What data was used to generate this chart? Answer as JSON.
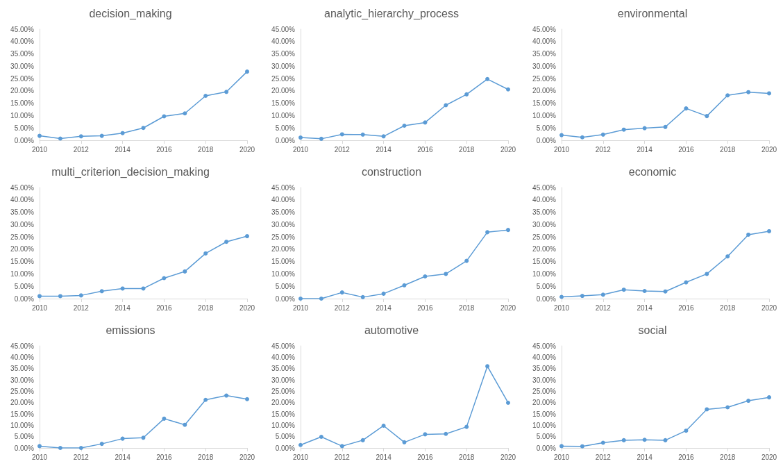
{
  "chart_data": [
    {
      "type": "line",
      "title": "decision_making",
      "x": [
        2010,
        2011,
        2012,
        2013,
        2014,
        2015,
        2016,
        2017,
        2018,
        2019,
        2020
      ],
      "values": [
        1.8,
        0.7,
        1.6,
        1.8,
        2.9,
        5.0,
        9.7,
        10.9,
        18.0,
        19.6,
        27.8
      ],
      "color": "#5b9bd5",
      "marker": "circle",
      "xlim": [
        2010,
        2020
      ],
      "xticks": [
        2010,
        2012,
        2014,
        2016,
        2018,
        2020
      ],
      "ylim": [
        0,
        45
      ],
      "yticks": [
        {
          "value": 0,
          "label": "0.00%"
        },
        {
          "value": 5,
          "label": "5.00%"
        },
        {
          "value": 10,
          "label": "10.00%"
        },
        {
          "value": 15,
          "label": "15.00%"
        },
        {
          "value": 20,
          "label": "20.00%"
        },
        {
          "value": 25,
          "label": "25.00%"
        },
        {
          "value": 30,
          "label": "30.00%"
        },
        {
          "value": 35,
          "label": "35.00%"
        },
        {
          "value": 40,
          "label": "40.00%"
        },
        {
          "value": 45,
          "label": "45.00%"
        }
      ]
    },
    {
      "type": "line",
      "title": "analytic_hierarchy_process",
      "x": [
        2010,
        2011,
        2012,
        2013,
        2014,
        2015,
        2016,
        2017,
        2018,
        2019,
        2020
      ],
      "values": [
        1.1,
        0.6,
        2.4,
        2.3,
        1.6,
        5.9,
        7.2,
        14.2,
        18.6,
        24.8,
        20.6
      ],
      "color": "#5b9bd5",
      "marker": "circle",
      "xlim": [
        2010,
        2020
      ],
      "xticks": [
        2010,
        2012,
        2014,
        2016,
        2018,
        2020
      ],
      "ylim": [
        0,
        45
      ],
      "yticks": [
        {
          "value": 0,
          "label": "0.00%"
        },
        {
          "value": 5,
          "label": "5.00%"
        },
        {
          "value": 10,
          "label": "10.00%"
        },
        {
          "value": 15,
          "label": "15.00%"
        },
        {
          "value": 20,
          "label": "20.00%"
        },
        {
          "value": 25,
          "label": "25.00%"
        },
        {
          "value": 30,
          "label": "30.00%"
        },
        {
          "value": 35,
          "label": "35.00%"
        },
        {
          "value": 40,
          "label": "40.00%"
        },
        {
          "value": 45,
          "label": "45.00%"
        }
      ]
    },
    {
      "type": "line",
      "title": "environmental",
      "x": [
        2010,
        2011,
        2012,
        2013,
        2014,
        2015,
        2016,
        2017,
        2018,
        2019,
        2020
      ],
      "values": [
        2.1,
        1.2,
        2.3,
        4.3,
        4.9,
        5.4,
        12.9,
        9.8,
        18.2,
        19.5,
        19.0
      ],
      "color": "#5b9bd5",
      "marker": "circle",
      "xlim": [
        2010,
        2020
      ],
      "xticks": [
        2010,
        2012,
        2014,
        2016,
        2018,
        2020
      ],
      "ylim": [
        0,
        45
      ],
      "yticks": [
        {
          "value": 0,
          "label": "0.00%"
        },
        {
          "value": 5,
          "label": "5.00%"
        },
        {
          "value": 10,
          "label": "10.00%"
        },
        {
          "value": 15,
          "label": "15.00%"
        },
        {
          "value": 20,
          "label": "20.00%"
        },
        {
          "value": 25,
          "label": "25.00%"
        },
        {
          "value": 30,
          "label": "30.00%"
        },
        {
          "value": 35,
          "label": "35.00%"
        },
        {
          "value": 40,
          "label": "40.00%"
        },
        {
          "value": 45,
          "label": "45.00%"
        }
      ]
    },
    {
      "type": "line",
      "title": "multi_criterion_decision_making",
      "x": [
        2010,
        2011,
        2012,
        2013,
        2014,
        2015,
        2016,
        2017,
        2018,
        2019,
        2020
      ],
      "values": [
        1.0,
        1.0,
        1.3,
        3.0,
        4.1,
        4.1,
        8.3,
        11.0,
        18.3,
        23.0,
        25.3
      ],
      "color": "#5b9bd5",
      "marker": "circle",
      "xlim": [
        2010,
        2020
      ],
      "xticks": [
        2010,
        2012,
        2014,
        2016,
        2018,
        2020
      ],
      "ylim": [
        0,
        45
      ],
      "yticks": [
        {
          "value": 0,
          "label": "0.00%"
        },
        {
          "value": 5,
          "label": "5.00%"
        },
        {
          "value": 10,
          "label": "10.00%"
        },
        {
          "value": 15,
          "label": "15.00%"
        },
        {
          "value": 20,
          "label": "20.00%"
        },
        {
          "value": 25,
          "label": "25.00%"
        },
        {
          "value": 30,
          "label": "30.00%"
        },
        {
          "value": 35,
          "label": "35.00%"
        },
        {
          "value": 40,
          "label": "40.00%"
        },
        {
          "value": 45,
          "label": "45.00%"
        }
      ]
    },
    {
      "type": "line",
      "title": "construction",
      "x": [
        2010,
        2011,
        2012,
        2013,
        2014,
        2015,
        2016,
        2017,
        2018,
        2019,
        2020
      ],
      "values": [
        0,
        0,
        2.5,
        0.6,
        2.0,
        5.4,
        9.0,
        10.0,
        15.3,
        26.9,
        27.8
      ],
      "color": "#5b9bd5",
      "marker": "circle",
      "xlim": [
        2010,
        2020
      ],
      "xticks": [
        2010,
        2012,
        2014,
        2016,
        2018,
        2020
      ],
      "ylim": [
        0,
        45
      ],
      "yticks": [
        {
          "value": 0,
          "label": "0.00%"
        },
        {
          "value": 5,
          "label": "5.00%"
        },
        {
          "value": 10,
          "label": "10.00%"
        },
        {
          "value": 15,
          "label": "15.00%"
        },
        {
          "value": 20,
          "label": "20.00%"
        },
        {
          "value": 25,
          "label": "25.00%"
        },
        {
          "value": 30,
          "label": "30.00%"
        },
        {
          "value": 35,
          "label": "35.00%"
        },
        {
          "value": 40,
          "label": "40.00%"
        },
        {
          "value": 45,
          "label": "45.00%"
        }
      ]
    },
    {
      "type": "line",
      "title": "economic",
      "x": [
        2010,
        2011,
        2012,
        2013,
        2014,
        2015,
        2016,
        2017,
        2018,
        2019,
        2020
      ],
      "values": [
        0.7,
        1.1,
        1.6,
        3.6,
        3.1,
        2.9,
        6.6,
        10.0,
        17.1,
        25.9,
        27.3
      ],
      "color": "#5b9bd5",
      "marker": "circle",
      "xlim": [
        2010,
        2020
      ],
      "xticks": [
        2010,
        2012,
        2014,
        2016,
        2018,
        2020
      ],
      "ylim": [
        0,
        45
      ],
      "yticks": [
        {
          "value": 0,
          "label": "0.00%"
        },
        {
          "value": 5,
          "label": "5.00%"
        },
        {
          "value": 10,
          "label": "10.00%"
        },
        {
          "value": 15,
          "label": "15.00%"
        },
        {
          "value": 20,
          "label": "20.00%"
        },
        {
          "value": 25,
          "label": "25.00%"
        },
        {
          "value": 30,
          "label": "30.00%"
        },
        {
          "value": 35,
          "label": "35.00%"
        },
        {
          "value": 40,
          "label": "40.00%"
        },
        {
          "value": 45,
          "label": "45.00%"
        }
      ]
    },
    {
      "type": "line",
      "title": "emissions",
      "x": [
        2010,
        2011,
        2012,
        2013,
        2014,
        2015,
        2016,
        2017,
        2018,
        2019,
        2020
      ],
      "values": [
        0.8,
        0,
        0,
        1.8,
        4.1,
        4.5,
        12.9,
        10.2,
        21.2,
        23.1,
        21.5
      ],
      "color": "#5b9bd5",
      "marker": "circle",
      "xlim": [
        2010,
        2020
      ],
      "xticks": [
        2010,
        2012,
        2014,
        2016,
        2018,
        2020
      ],
      "ylim": [
        0,
        45
      ],
      "yticks": [
        {
          "value": 0,
          "label": "0.00%"
        },
        {
          "value": 5,
          "label": "5.00%"
        },
        {
          "value": 10,
          "label": "10.00%"
        },
        {
          "value": 15,
          "label": "15.00%"
        },
        {
          "value": 20,
          "label": "20.00%"
        },
        {
          "value": 25,
          "label": "25.00%"
        },
        {
          "value": 30,
          "label": "30.00%"
        },
        {
          "value": 35,
          "label": "35.00%"
        },
        {
          "value": 40,
          "label": "40.00%"
        },
        {
          "value": 45,
          "label": "45.00%"
        }
      ]
    },
    {
      "type": "line",
      "title": "automotive",
      "x": [
        2010,
        2011,
        2012,
        2013,
        2014,
        2015,
        2016,
        2017,
        2018,
        2019,
        2020
      ],
      "values": [
        1.3,
        4.9,
        0.8,
        3.4,
        9.8,
        2.5,
        6.0,
        6.2,
        9.3,
        36.0,
        19.9
      ],
      "color": "#5b9bd5",
      "marker": "circle",
      "xlim": [
        2010,
        2020
      ],
      "xticks": [
        2010,
        2012,
        2014,
        2016,
        2018,
        2020
      ],
      "ylim": [
        0,
        45
      ],
      "yticks": [
        {
          "value": 0,
          "label": "0.00%"
        },
        {
          "value": 5,
          "label": "5.00%"
        },
        {
          "value": 10,
          "label": "10.00%"
        },
        {
          "value": 15,
          "label": "15.00%"
        },
        {
          "value": 20,
          "label": "20.00%"
        },
        {
          "value": 25,
          "label": "25.00%"
        },
        {
          "value": 30,
          "label": "30.00%"
        },
        {
          "value": 35,
          "label": "35.00%"
        },
        {
          "value": 40,
          "label": "40.00%"
        },
        {
          "value": 45,
          "label": "45.00%"
        }
      ]
    },
    {
      "type": "line",
      "title": "social",
      "x": [
        2010,
        2011,
        2012,
        2013,
        2014,
        2015,
        2016,
        2017,
        2018,
        2019,
        2020
      ],
      "values": [
        0.8,
        0.7,
        2.3,
        3.4,
        3.6,
        3.4,
        7.6,
        17.0,
        17.9,
        20.8,
        22.3
      ],
      "color": "#5b9bd5",
      "marker": "circle",
      "xlim": [
        2010,
        2020
      ],
      "xticks": [
        2010,
        2012,
        2014,
        2016,
        2018,
        2020
      ],
      "ylim": [
        0,
        45
      ],
      "yticks": [
        {
          "value": 0,
          "label": "0.00%"
        },
        {
          "value": 5,
          "label": "5.00%"
        },
        {
          "value": 10,
          "label": "10.00%"
        },
        {
          "value": 15,
          "label": "15.00%"
        },
        {
          "value": 20,
          "label": "20.00%"
        },
        {
          "value": 25,
          "label": "25.00%"
        },
        {
          "value": 30,
          "label": "30.00%"
        },
        {
          "value": 35,
          "label": "35.00%"
        },
        {
          "value": 40,
          "label": "40.00%"
        },
        {
          "value": 45,
          "label": "45.00%"
        }
      ]
    }
  ]
}
